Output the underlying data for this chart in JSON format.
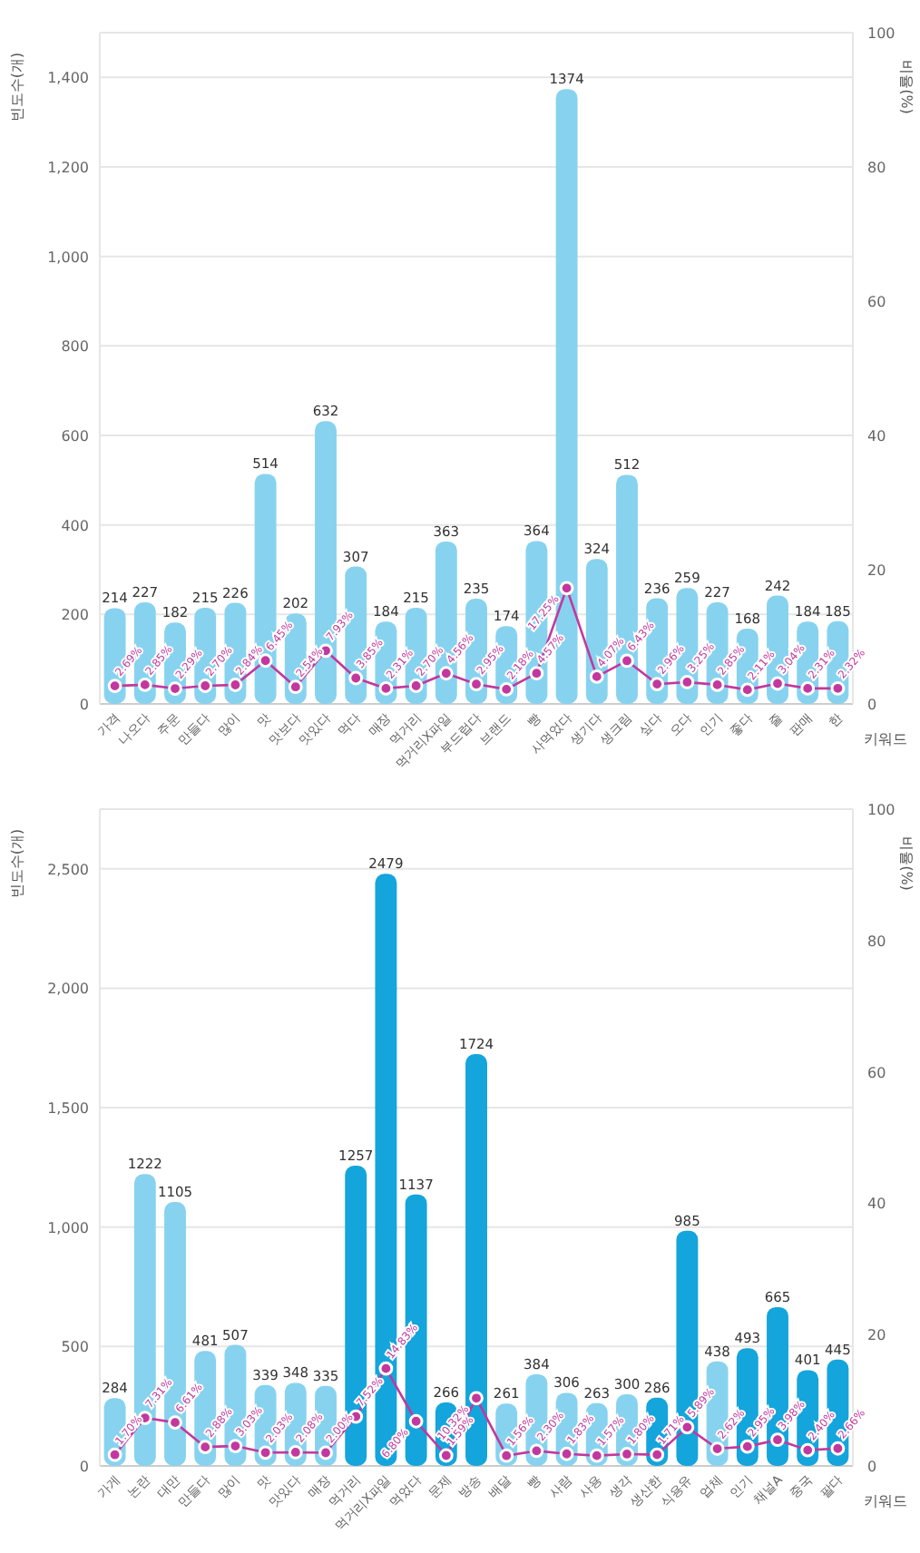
{
  "chart_data": [
    {
      "type": "bar",
      "xlabel": "키워드",
      "ylabel": "빈도수(개)",
      "y2label": "비율(%)",
      "categories": [
        "가격",
        "나오다",
        "주문",
        "만들다",
        "많이",
        "맛",
        "맛보다",
        "맛있다",
        "먹다",
        "매장",
        "먹거리",
        "먹거리X파일",
        "부드럽다",
        "브랜드",
        "빵",
        "사먹었다",
        "생기다",
        "생크림",
        "싶다",
        "오다",
        "인기",
        "좋다",
        "줄",
        "판매",
        "한"
      ],
      "series": [
        {
          "colors": [
            "#87d3ef",
            "#87d3ef",
            "#87d3ef",
            "#87d3ef",
            "#87d3ef",
            "#87d3ef",
            "#87d3ef",
            "#87d3ef",
            "#87d3ef",
            "#87d3ef",
            "#87d3ef",
            "#87d3ef",
            "#87d3ef",
            "#87d3ef",
            "#87d3ef",
            "#87d3ef",
            "#87d3ef",
            "#87d3ef",
            "#87d3ef",
            "#87d3ef",
            "#87d3ef",
            "#87d3ef",
            "#87d3ef",
            "#87d3ef",
            "#87d3ef"
          ],
          "values": [
            214,
            227,
            182,
            215,
            226,
            514,
            202,
            632,
            307,
            184,
            215,
            363,
            235,
            174,
            364,
            1374,
            324,
            512,
            236,
            259,
            227,
            168,
            242,
            184,
            185
          ]
        },
        {
          "type": "line",
          "axis": "y2",
          "color": "#c2389e",
          "values": [
            2.69,
            2.85,
            2.29,
            2.7,
            2.84,
            6.45,
            2.54,
            7.93,
            3.85,
            2.31,
            2.7,
            4.56,
            2.95,
            2.18,
            4.57,
            17.25,
            4.07,
            6.43,
            2.96,
            3.25,
            2.85,
            2.11,
            3.04,
            2.31,
            2.32
          ],
          "value_labels": [
            "2.69%",
            "2.85%",
            "2.29%",
            "2.70%",
            "2.84%",
            "6.45%",
            "2.54%",
            "7.93%",
            "3.85%",
            "2.31%",
            "2.70%",
            "4.56%",
            "2.95%",
            "2.18%",
            "4.57%",
            "17.25%",
            "4.07%",
            "6.43%",
            "2.96%",
            "3.25%",
            "2.85%",
            "2.11%",
            "3.04%",
            "2.31%",
            "2.32%"
          ]
        }
      ],
      "ylim": [
        0,
        1500
      ],
      "yticks": [
        0,
        200,
        400,
        600,
        800,
        {
          "value": 1000,
          "label": "1,000"
        },
        {
          "value": 1200,
          "label": "1,200"
        },
        {
          "value": 1400,
          "label": "1,400"
        }
      ],
      "y2lim": [
        0,
        100
      ],
      "y2ticks": [
        0,
        20,
        40,
        60,
        80,
        100
      ],
      "grid": "y",
      "marker": "circle",
      "data_labels": true
    },
    {
      "type": "bar",
      "xlabel": "키워드",
      "ylabel": "빈도수(개)",
      "y2label": "비율(%)",
      "categories": [
        "가게",
        "논란",
        "대만",
        "만들다",
        "많이",
        "맛",
        "맛있다",
        "매장",
        "먹거리",
        "먹거리X파일",
        "먹었다",
        "문제",
        "방송",
        "배달",
        "빵",
        "사람",
        "사용",
        "생각",
        "생산한",
        "식용유",
        "업체",
        "인기",
        "채널A",
        "중국",
        "팔다"
      ],
      "series": [
        {
          "colors": [
            "#87d3ef",
            "#87d3ef",
            "#87d3ef",
            "#87d3ef",
            "#87d3ef",
            "#87d3ef",
            "#87d3ef",
            "#87d3ef",
            "#14a5dc",
            "#14a5dc",
            "#14a5dc",
            "#14a5dc",
            "#14a5dc",
            "#87d3ef",
            "#87d3ef",
            "#87d3ef",
            "#87d3ef",
            "#87d3ef",
            "#14a5dc",
            "#14a5dc",
            "#87d3ef",
            "#14a5dc",
            "#14a5dc",
            "#14a5dc",
            "#14a5dc"
          ],
          "values": [
            284,
            1222,
            1105,
            481,
            507,
            339,
            348,
            335,
            1257,
            2479,
            1137,
            266,
            1724,
            261,
            384,
            306,
            263,
            300,
            286,
            985,
            438,
            493,
            665,
            401,
            445
          ]
        },
        {
          "type": "line",
          "axis": "y2",
          "color": "#c2389e",
          "values": [
            1.7,
            7.31,
            6.61,
            2.88,
            3.03,
            2.03,
            2.08,
            2.0,
            7.52,
            14.83,
            6.8,
            1.59,
            10.32,
            1.56,
            2.3,
            1.83,
            1.57,
            1.8,
            1.71,
            5.89,
            2.62,
            2.95,
            3.98,
            2.4,
            2.66
          ],
          "value_labels": [
            "1.70%",
            "7.31%",
            "6.61%",
            "2.88%",
            "3.03%",
            "2.03%",
            "2.08%",
            "2.00%",
            "7.52%",
            "14.83%",
            "6.80%",
            "1.59%",
            "10.32%",
            "1.56%",
            "2.30%",
            "1.83%",
            "1.57%",
            "1.80%",
            "1.71%",
            "5.89%",
            "2.62%",
            "2.95%",
            "3.98%",
            "2.40%",
            "2.66%"
          ]
        }
      ],
      "ylim": [
        0,
        2750
      ],
      "yticks": [
        0,
        500,
        {
          "value": 1000,
          "label": "1,000"
        },
        {
          "value": 1500,
          "label": "1,500"
        },
        {
          "value": 2000,
          "label": "2,000"
        },
        {
          "value": 2500,
          "label": "2,500"
        }
      ],
      "y2lim": [
        0,
        100
      ],
      "y2ticks": [
        0,
        20,
        40,
        60,
        80,
        100
      ],
      "grid": "y",
      "marker": "circle",
      "data_labels": true
    }
  ]
}
